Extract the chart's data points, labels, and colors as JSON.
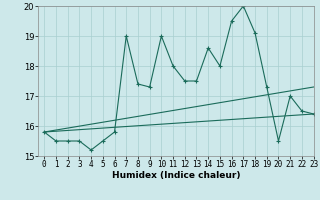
{
  "xlabel": "Humidex (Indice chaleur)",
  "x": [
    0,
    1,
    2,
    3,
    4,
    5,
    6,
    7,
    8,
    9,
    10,
    11,
    12,
    13,
    14,
    15,
    16,
    17,
    18,
    19,
    20,
    21,
    22,
    23
  ],
  "line1": [
    15.8,
    15.5,
    15.5,
    15.5,
    15.2,
    15.5,
    15.8,
    19.0,
    17.4,
    17.3,
    19.0,
    18.0,
    17.5,
    17.5,
    18.6,
    18.0,
    19.5,
    20.0,
    19.1,
    17.3,
    15.5,
    17.0,
    16.5,
    16.4
  ],
  "line2_x": [
    0,
    23
  ],
  "line2_y": [
    15.8,
    16.4
  ],
  "line3_x": [
    0,
    23
  ],
  "line3_y": [
    15.8,
    17.3
  ],
  "line_color": "#1a6b5a",
  "bg_color": "#cde8ea",
  "grid_color": "#a8cfd0",
  "ylim": [
    15,
    20
  ],
  "xlim": [
    -0.5,
    23
  ],
  "yticks": [
    15,
    16,
    17,
    18,
    19,
    20
  ],
  "xticks": [
    0,
    1,
    2,
    3,
    4,
    5,
    6,
    7,
    8,
    9,
    10,
    11,
    12,
    13,
    14,
    15,
    16,
    17,
    18,
    19,
    20,
    21,
    22,
    23
  ],
  "xlabel_fontsize": 6.5,
  "tick_fontsize": 5.5,
  "ytick_fontsize": 6.0
}
